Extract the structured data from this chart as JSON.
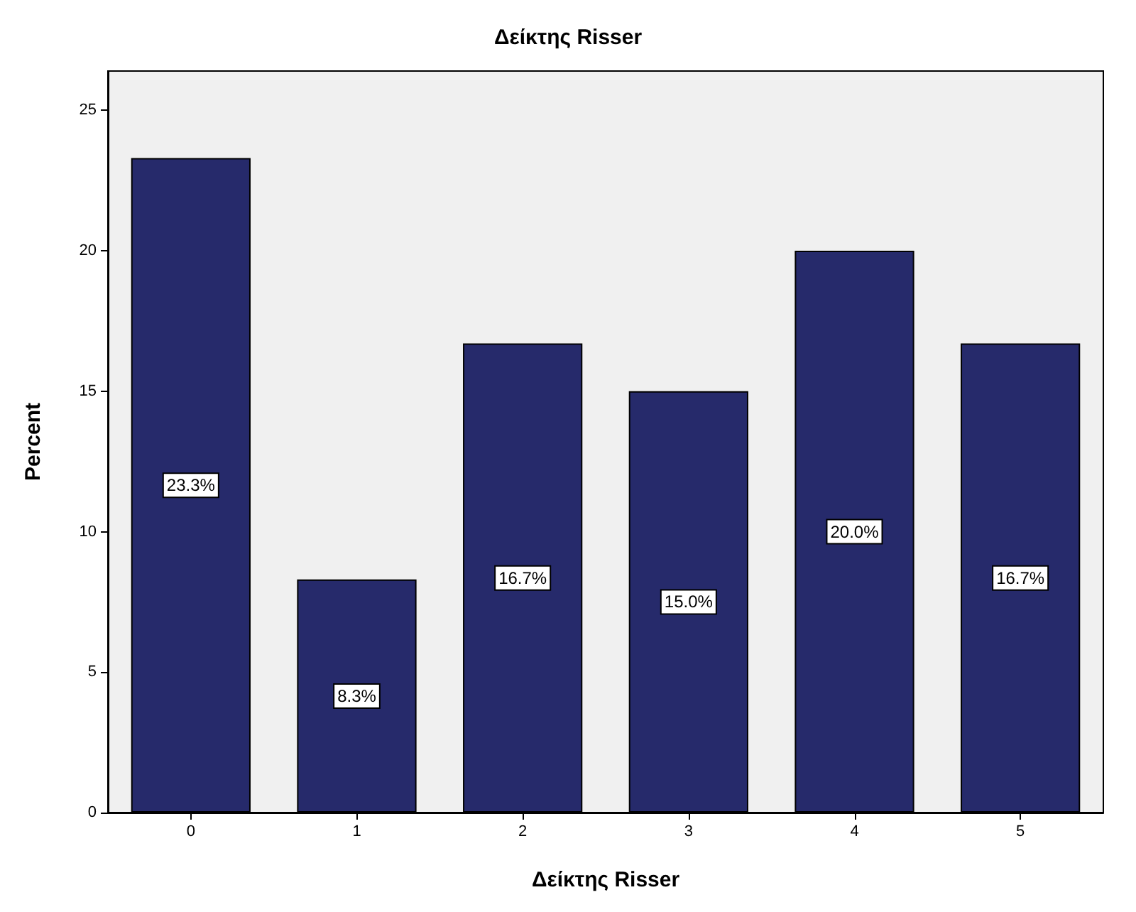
{
  "chart_data": {
    "type": "bar",
    "title": "Δείκτης Risser",
    "xlabel": "Δείκτης Risser",
    "ylabel": "Percent",
    "categories": [
      "0",
      "1",
      "2",
      "3",
      "4",
      "5"
    ],
    "values": [
      23.3,
      8.3,
      16.7,
      15.0,
      20.0,
      16.7
    ],
    "value_labels": [
      "23.3%",
      "8.3%",
      "16.7%",
      "15.0%",
      "20.0%",
      "16.7%"
    ],
    "color": "#262a6b",
    "ylim": [
      0,
      26.4
    ],
    "yticks": [
      0,
      5,
      10,
      15,
      20,
      25
    ],
    "grid": false
  }
}
